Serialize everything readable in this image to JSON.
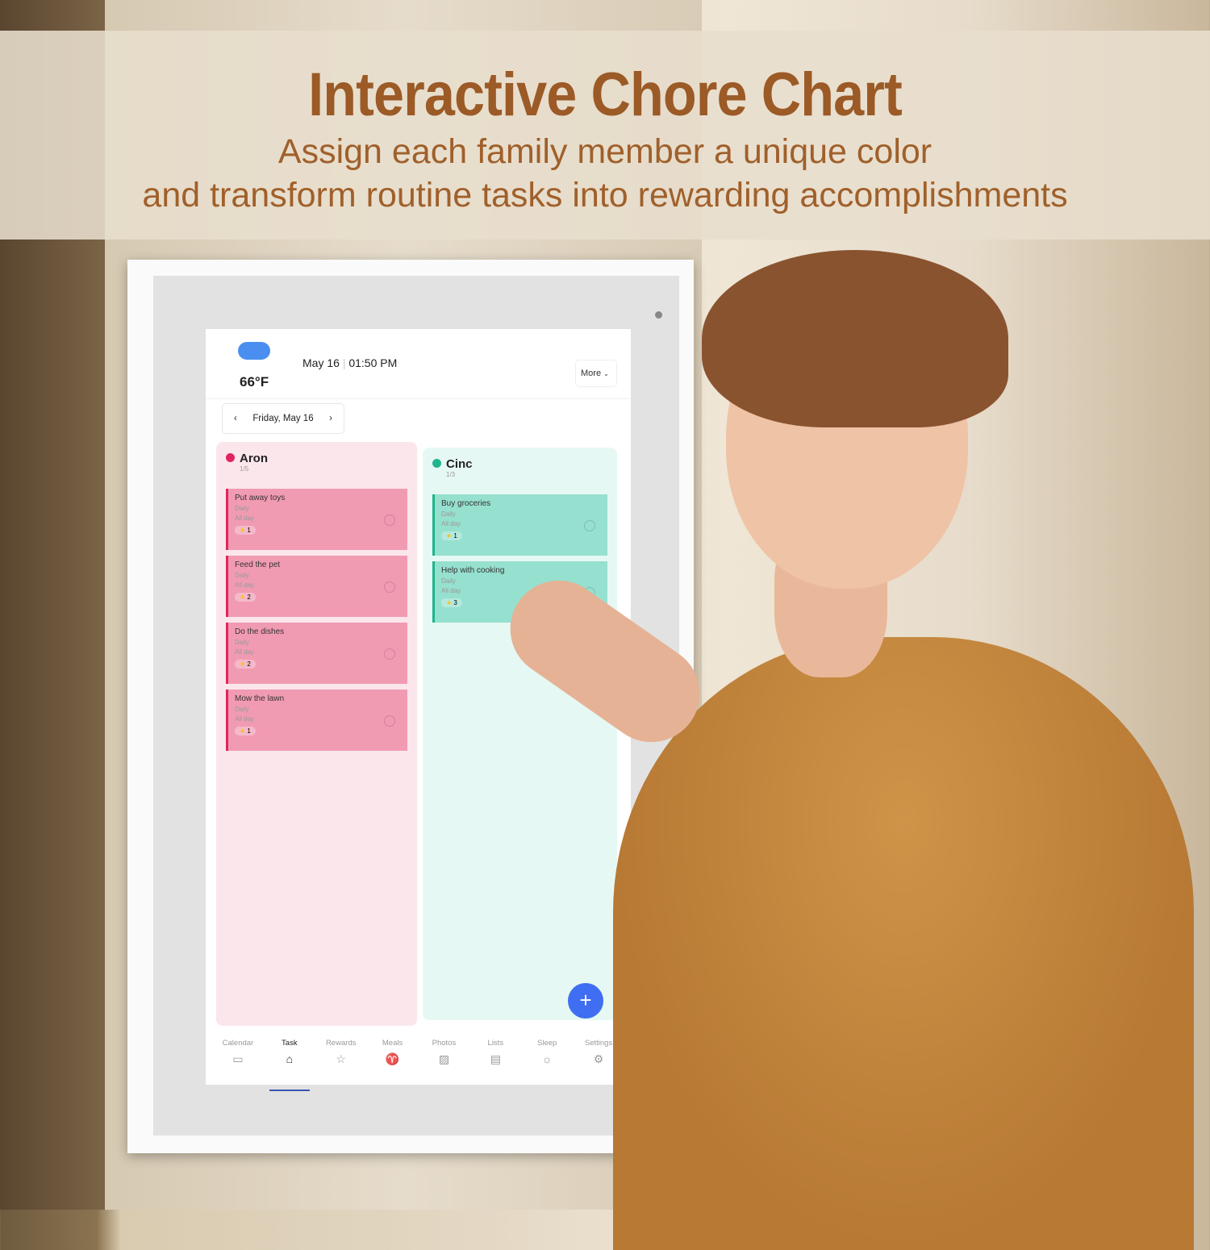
{
  "banner": {
    "title": "Interactive Chore Chart",
    "subtitle_line1": "Assign each family member a unique color",
    "subtitle_line2": "and transform routine tasks into rewarding accomplishments"
  },
  "header": {
    "weather_icon": "cloud-icon",
    "temperature": "66°F",
    "date": "May 16",
    "time": "01:50 PM",
    "more_label": "More"
  },
  "date_nav": {
    "prev": "‹",
    "label": "Friday, May 16",
    "next": "›"
  },
  "members": [
    {
      "name": "Aron",
      "progress": "1/5",
      "color": "#e0245e",
      "card_color": "#f19bb3",
      "tasks": [
        {
          "title": "Put away toys",
          "freq": "Daily",
          "time": "All day",
          "stars": "1"
        },
        {
          "title": "Feed the pet",
          "freq": "Daily",
          "time": "All day",
          "stars": "2"
        },
        {
          "title": "Do the dishes",
          "freq": "Daily",
          "time": "All day",
          "stars": "2"
        },
        {
          "title": "Mow the lawn",
          "freq": "Daily",
          "time": "All day",
          "stars": "1"
        }
      ]
    },
    {
      "name": "Cinc",
      "progress": "1/3",
      "color": "#1fb58e",
      "card_color": "#96e0cf",
      "tasks": [
        {
          "title": "Buy groceries",
          "freq": "Daily",
          "time": "All day",
          "stars": "1"
        },
        {
          "title": "Help with cooking",
          "freq": "Daily",
          "time": "All day",
          "stars": "3"
        }
      ]
    }
  ],
  "fab": "+",
  "nav": [
    {
      "label": "Calendar",
      "icon": "calendar-icon",
      "glyph": "▭"
    },
    {
      "label": "Task",
      "icon": "broom-icon",
      "glyph": "⌂",
      "active": true
    },
    {
      "label": "Rewards",
      "icon": "star-icon",
      "glyph": "☆"
    },
    {
      "label": "Meals",
      "icon": "utensils-icon",
      "glyph": "♈"
    },
    {
      "label": "Photos",
      "icon": "photo-icon",
      "glyph": "▨"
    },
    {
      "label": "Lists",
      "icon": "list-icon",
      "glyph": "▤"
    },
    {
      "label": "Sleep",
      "icon": "sun-icon",
      "glyph": "☼"
    },
    {
      "label": "Settings",
      "icon": "gear-icon",
      "glyph": "⚙"
    }
  ]
}
